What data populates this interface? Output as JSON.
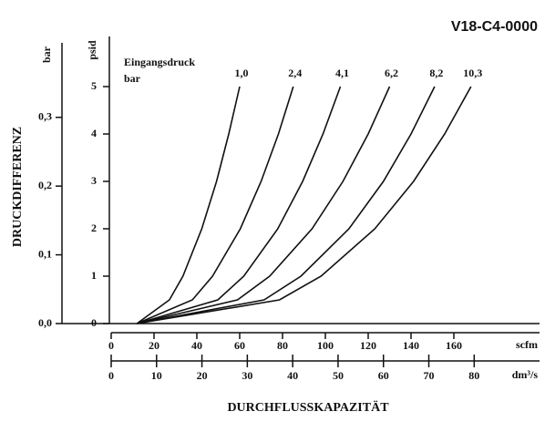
{
  "chart_data": {
    "type": "line",
    "title": "V18-C4-0000",
    "legend_title": "Eingangsdruck",
    "legend_unit": "bar",
    "ylabel": "DRUCKDIFFERENZ",
    "y_unit": "psid",
    "y2_unit": "bar",
    "xlabel": "DURCHFLUSSKAPAZITÄT",
    "x_unit": "scfm",
    "x2_unit": "dm³/s",
    "values": [
      0,
      0.5,
      1,
      2,
      3,
      4,
      5
    ],
    "series": [
      {
        "name": "1,0",
        "color": "#111111",
        "x": [
          12,
          27.2,
          33.5,
          42.3,
          49.2,
          54.9,
          60
        ]
      },
      {
        "name": "2,4",
        "color": "#111111",
        "x": [
          12,
          37.9,
          47.3,
          60.3,
          70.0,
          78.1,
          85
        ]
      },
      {
        "name": "4,1",
        "color": "#111111",
        "x": [
          12,
          49.8,
          61.9,
          77.8,
          89.4,
          98.9,
          107
        ]
      },
      {
        "name": "6,2",
        "color": "#111111",
        "x": [
          12,
          59.0,
          74.0,
          93.8,
          108.2,
          120.0,
          130
        ]
      },
      {
        "name": "8,2",
        "color": "#111111",
        "x": [
          12,
          71.4,
          88.6,
          111.0,
          127.1,
          140.0,
          151
        ]
      },
      {
        "name": "10,3",
        "color": "#111111",
        "x": [
          12,
          78.6,
          98.0,
          123.1,
          141.2,
          155.7,
          168
        ]
      }
    ],
    "xlim": [
      0,
      200
    ],
    "xticks": [
      0,
      20,
      40,
      60,
      80,
      100,
      120,
      140,
      160
    ],
    "x2lim": [
      0,
      94.4
    ],
    "x2ticks": [
      0,
      10,
      20,
      30,
      40,
      50,
      60,
      70,
      80
    ],
    "ylim": [
      0,
      6
    ],
    "yticks": [
      0,
      1,
      2,
      3,
      4,
      5
    ],
    "y2lim": [
      0,
      0.4137
    ],
    "y2ticks": [
      {
        "value": 0,
        "label": "0,0"
      },
      {
        "value": 0.1,
        "label": "0,1"
      },
      {
        "value": 0.2,
        "label": "0,2"
      },
      {
        "value": 0.3,
        "label": "0,3"
      }
    ]
  }
}
